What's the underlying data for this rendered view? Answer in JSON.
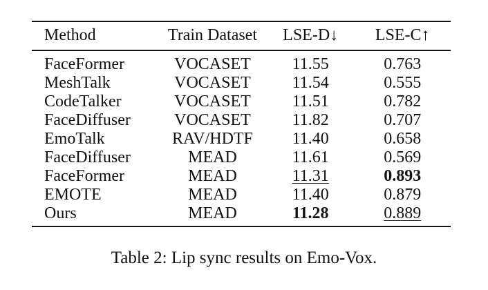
{
  "table": {
    "headers": [
      "Method",
      "Train Dataset",
      "LSE-D↓",
      "LSE-C↑"
    ],
    "rows": [
      {
        "method": "FaceFormer",
        "dataset": "VOCASET",
        "lse_d": "11.55",
        "lse_c": "0.763"
      },
      {
        "method": "MeshTalk",
        "dataset": "VOCASET",
        "lse_d": "11.54",
        "lse_c": "0.555"
      },
      {
        "method": "CodeTalker",
        "dataset": "VOCASET",
        "lse_d": "11.51",
        "lse_c": "0.782"
      },
      {
        "method": "FaceDiffuser",
        "dataset": "VOCASET",
        "lse_d": "11.82",
        "lse_c": "0.707"
      },
      {
        "method": "EmoTalk",
        "dataset": "RAV/HDTF",
        "lse_d": "11.40",
        "lse_c": "0.658"
      },
      {
        "method": "FaceDiffuser",
        "dataset": "MEAD",
        "lse_d": "11.61",
        "lse_c": "0.569"
      },
      {
        "method": "FaceFormer",
        "dataset": "MEAD",
        "lse_d": "11.31",
        "lse_c": "0.893"
      },
      {
        "method": "EMOTE",
        "dataset": "MEAD",
        "lse_d": "11.40",
        "lse_c": "0.879"
      },
      {
        "method": "Ours",
        "dataset": "MEAD",
        "lse_d": "11.28",
        "lse_c": "0.889"
      }
    ]
  },
  "caption": "Table 2: Lip sync results on Emo-Vox."
}
